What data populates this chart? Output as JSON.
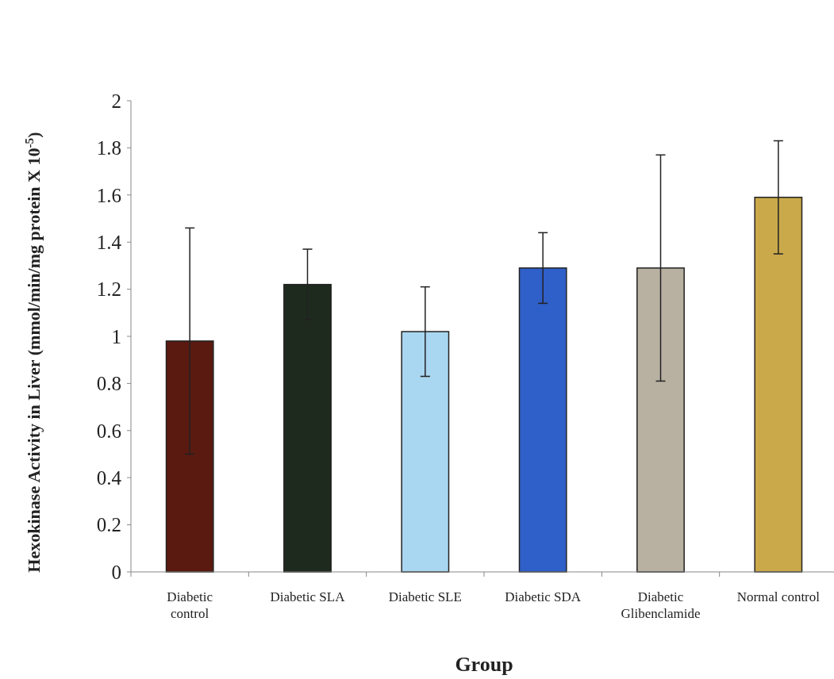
{
  "chart_data": {
    "type": "bar",
    "xlabel": "Group",
    "ylabel": "Hexokinase Activity in Liver (mmol/min/mg protein X 10$^{-5}$)",
    "categories": [
      "Diabetic control",
      "Diabetic SLA",
      "Diabetic SLE",
      "Diabetic SDA",
      "Diabetic Glibenclamide",
      "Normal control"
    ],
    "values": [
      0.98,
      1.22,
      1.02,
      1.29,
      1.29,
      1.59
    ],
    "errors": [
      0.48,
      0.15,
      0.19,
      0.15,
      0.48,
      0.24
    ],
    "colors": [
      "#5a1a10",
      "#1f2a1f",
      "#a9d6f0",
      "#2f5fc8",
      "#b8b0a0",
      "#c9a94a"
    ],
    "ylim": [
      0,
      2
    ],
    "yticks": [
      0,
      0.2,
      0.4,
      0.6,
      0.8,
      1,
      1.2,
      1.4,
      1.6,
      1.8,
      2
    ],
    "grid": false
  }
}
